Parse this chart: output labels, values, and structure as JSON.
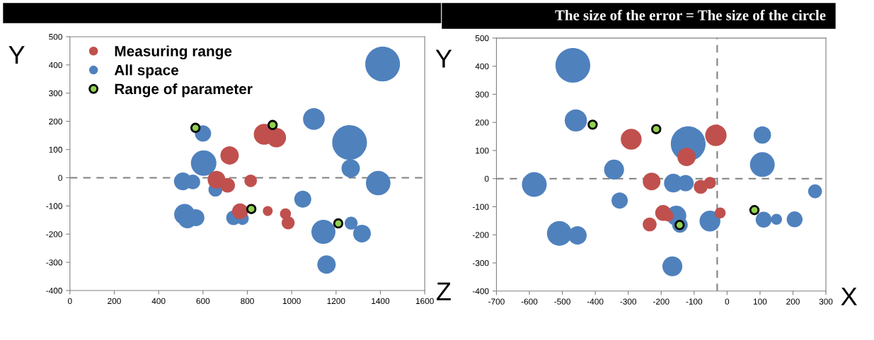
{
  "chart_data": [
    {
      "type": "bubble",
      "annotations": [
        "Y"
      ],
      "xlim": [
        0,
        1600
      ],
      "xticks": [
        0,
        200,
        400,
        600,
        800,
        1000,
        1200,
        1400,
        1600
      ],
      "ylim": [
        -400,
        500
      ],
      "yticks": [
        -400,
        -300,
        -200,
        -100,
        0,
        100,
        200,
        300,
        400,
        500
      ],
      "legend": "top left",
      "grid": false,
      "ref_lines": [
        {
          "axis": "y",
          "value": 0,
          "color": "#808080",
          "line_style": "dashed"
        }
      ],
      "series": [
        {
          "name": "Measuring range",
          "color": "#c0504d",
          "x": [
            876,
            931,
            720,
            661,
            711,
            815,
            767,
            892,
            972,
            984
          ],
          "values": [
            154,
            142,
            79,
            -7,
            -27,
            -11,
            -119,
            -118,
            -128,
            -160
          ],
          "sizes": [
            0.36,
            0.31,
            0.28,
            0.26,
            0.18,
            0.13,
            0.21,
            0.08,
            0.1,
            0.14
          ]
        },
        {
          "name": "All space",
          "color": "#4f81bd",
          "x": [
            1410,
            1100,
            1261,
            1266,
            1390,
            600,
            603,
            509,
            554,
            656,
            517,
            530,
            568,
            738,
            778,
            1050,
            1143,
            1157,
            1268,
            1317
          ],
          "values": [
            403,
            208,
            125,
            33,
            -19,
            157,
            52,
            -13,
            -15,
            -42,
            -130,
            -147,
            -142,
            -142,
            -145,
            -76,
            -192,
            -308,
            -161,
            -198
          ],
          "sizes": [
            1,
            0.39,
            1,
            0.28,
            0.5,
            0.22,
            0.54,
            0.26,
            0.18,
            0.16,
            0.36,
            0.28,
            0.24,
            0.18,
            0.13,
            0.24,
            0.48,
            0.28,
            0.14,
            0.26
          ]
        },
        {
          "name": "Range of parameter",
          "color": "#92d050",
          "type": "scatter",
          "marker": "circle",
          "x": [
            566,
            914,
            818,
            1210
          ],
          "values": [
            177,
            187,
            -111,
            -162
          ]
        }
      ]
    },
    {
      "type": "bubble",
      "title": "The size of the error = The size of the circle",
      "annotations": [
        "Y",
        "Z",
        "X"
      ],
      "xlim": [
        -700,
        300
      ],
      "xticks": [
        -700,
        -600,
        -500,
        -400,
        -300,
        -200,
        -100,
        0,
        100,
        200,
        300
      ],
      "ylim": [
        -400,
        500
      ],
      "yticks": [
        -400,
        -300,
        -200,
        -100,
        0,
        100,
        200,
        300,
        400,
        500
      ],
      "grid": false,
      "ref_lines": [
        {
          "axis": "y",
          "value": 0,
          "color": "#808080",
          "line_style": "dashed"
        },
        {
          "axis": "x",
          "value": -30,
          "color": "#808080",
          "line_style": "dashed"
        }
      ],
      "series": [
        {
          "color": "#c0504d",
          "x": [
            -291,
            -34,
            -123,
            -229,
            -80,
            -52,
            -194,
            -179,
            -21,
            -235
          ],
          "values": [
            140,
            154,
            77,
            -10,
            -29,
            -15,
            -122,
            -133,
            -122,
            -163
          ],
          "sizes": [
            0.36,
            0.38,
            0.28,
            0.26,
            0.16,
            0.12,
            0.21,
            0.1,
            0.1,
            0.16
          ]
        },
        {
          "color": "#4f81bd",
          "x": [
            -468,
            -459,
            -118,
            107,
            107,
            -343,
            -585,
            -163,
            -126,
            267,
            -326,
            -154,
            -143,
            -52,
            111,
            150,
            205,
            -509,
            -454,
            -166
          ],
          "values": [
            403,
            207,
            124,
            155,
            50,
            32,
            -21,
            -16,
            -16,
            -45,
            -78,
            -132,
            -165,
            -151,
            -146,
            -145,
            -145,
            -195,
            -202,
            -312
          ],
          "sizes": [
            1,
            0.41,
            1,
            0.25,
            0.51,
            0.33,
            0.51,
            0.29,
            0.22,
            0.16,
            0.22,
            0.33,
            0.2,
            0.36,
            0.21,
            0.1,
            0.21,
            0.51,
            0.28,
            0.33
          ]
        },
        {
          "color": "#92d050",
          "type": "scatter",
          "marker": "circle",
          "x": [
            -408,
            -215,
            -144,
            83
          ],
          "values": [
            192,
            176,
            -165,
            -112
          ]
        }
      ]
    }
  ]
}
